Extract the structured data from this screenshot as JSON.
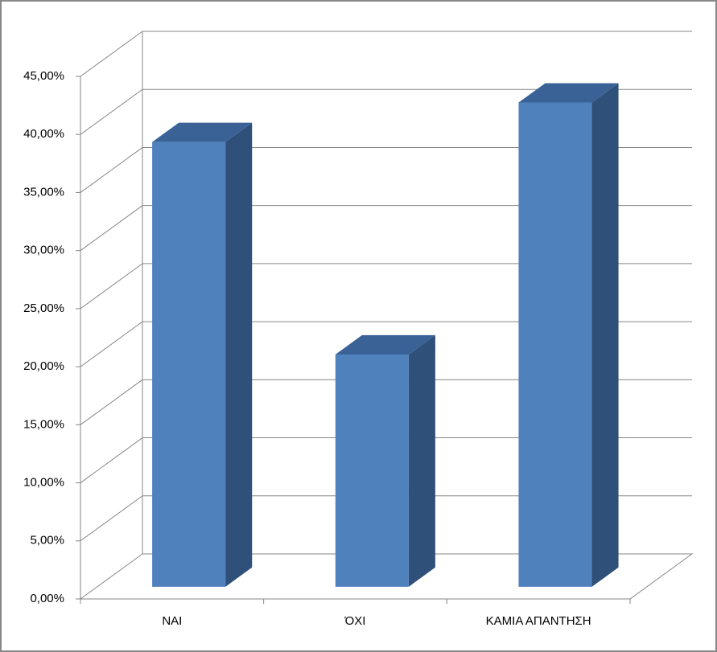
{
  "chart_data": {
    "type": "bar3d",
    "categories": [
      "ΝΑΙ",
      "ΌΧΙ",
      "ΚΑΜΙΑ ΑΠΑΝΤΗΣΗ"
    ],
    "values": [
      38.3,
      20.0,
      41.7
    ],
    "color": "#4f81bd",
    "ylim": [
      0,
      45
    ],
    "yticks": [
      {
        "value": 0,
        "label": "0,00%"
      },
      {
        "value": 5,
        "label": "5,00%"
      },
      {
        "value": 10,
        "label": "10,00%"
      },
      {
        "value": 15,
        "label": "15,00%"
      },
      {
        "value": 20,
        "label": "20,00%"
      },
      {
        "value": 25,
        "label": "25,00%"
      },
      {
        "value": 30,
        "label": "30,00%"
      },
      {
        "value": 35,
        "label": "35,00%"
      },
      {
        "value": 40,
        "label": "40,00%"
      },
      {
        "value": 45,
        "label": "45,00%"
      }
    ],
    "grid": true
  }
}
